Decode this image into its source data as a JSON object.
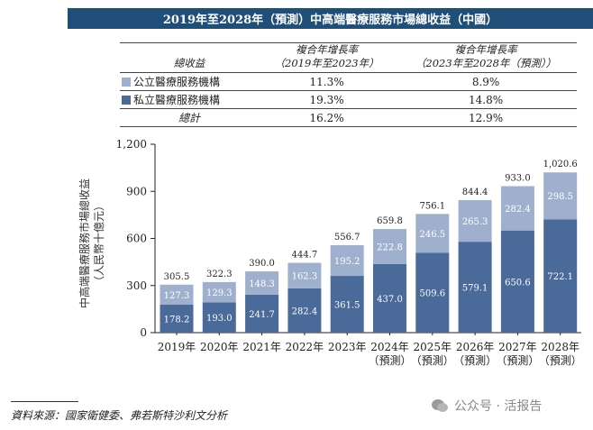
{
  "title": "2019年至2028年（預測）中高端醫療服務市場總收益（中國）",
  "colors": {
    "public": "#9fb0cf",
    "private": "#4a6a9a",
    "title_bg": "#1f4e79"
  },
  "cagr_table": {
    "headers": [
      "總收益",
      "複合年增長率",
      "（2019年至2023年）",
      "複合年增長率",
      "（2023年至2028年（預測））"
    ],
    "rows": [
      {
        "label": "公立醫療服務機構",
        "cagr_2019_2023": "11.3%",
        "cagr_2023_2028": "8.9%",
        "swatch": "public"
      },
      {
        "label": "私立醫療服務機構",
        "cagr_2019_2023": "19.3%",
        "cagr_2023_2028": "14.8%",
        "swatch": "private"
      }
    ],
    "total": {
      "label": "總計",
      "cagr_2019_2023": "16.2%",
      "cagr_2023_2028": "12.9%"
    }
  },
  "chart_data": {
    "type": "bar",
    "stacked": true,
    "title": "2019年至2028年（預測）中高端醫療服務市場總收益（中國）",
    "ylabel": "中高端醫療服務市場總收益（人民幣十億元）",
    "xlabel": "",
    "ylim": [
      0,
      1200
    ],
    "yticks": [
      0,
      300,
      600,
      900,
      1200
    ],
    "ytick_labels": [
      "0",
      "300",
      "600",
      "900",
      "1,200"
    ],
    "categories": [
      "2019年",
      "2020年",
      "2021年",
      "2022年",
      "2023年",
      "2024年",
      "2025年",
      "2026年",
      "2027年",
      "2028年"
    ],
    "category_sublabels": [
      "",
      "",
      "",
      "",
      "",
      "（預測）",
      "（預測）",
      "（預測）",
      "（預測）",
      "（預測）"
    ],
    "series": [
      {
        "name": "私立醫療服務機構",
        "color": "#4a6a9a",
        "values": [
          178.2,
          193.0,
          241.7,
          282.4,
          361.5,
          437.0,
          509.6,
          579.1,
          650.6,
          722.1
        ],
        "labels": [
          "178.2",
          "193.0",
          "241.7",
          "282.4",
          "361.5",
          "437.0",
          "509.6",
          "579.1",
          "650.6",
          "722.1"
        ]
      },
      {
        "name": "公立醫療服務機構",
        "color": "#9fb0cf",
        "values": [
          127.3,
          129.3,
          148.3,
          162.3,
          195.2,
          222.8,
          246.5,
          265.3,
          282.4,
          298.5
        ],
        "labels": [
          "127.3",
          "129.3",
          "148.3",
          "162.3",
          "195.2",
          "222.8",
          "246.5",
          "265.3",
          "282.4",
          "298.5"
        ]
      }
    ],
    "totals": [
      305.5,
      322.3,
      390.0,
      444.7,
      556.7,
      659.8,
      756.1,
      844.4,
      933.0,
      1020.6
    ],
    "total_labels": [
      "305.5",
      "322.3",
      "390.0",
      "444.7",
      "556.7",
      "659.8",
      "756.1",
      "844.4",
      "933.0",
      "1,020.6"
    ],
    "grid": false,
    "legend": "table-above"
  },
  "source": "資料來源：國家衛健委、弗若斯特沙利文分析",
  "watermark": "公众号 · 活报告"
}
